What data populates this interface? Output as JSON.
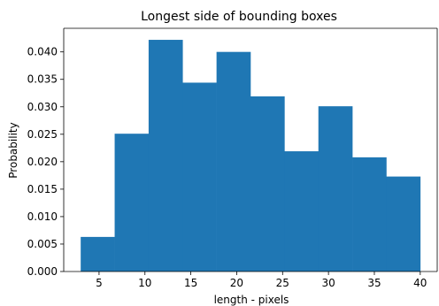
{
  "chart_data": {
    "type": "bar",
    "title": "Longest side of bounding boxes",
    "xlabel": "length - pixels",
    "ylabel": "Probability",
    "bins": [
      {
        "start": 3.0,
        "end": 6.7,
        "value": 0.0063
      },
      {
        "start": 6.7,
        "end": 10.4,
        "value": 0.0251
      },
      {
        "start": 10.4,
        "end": 14.1,
        "value": 0.0422
      },
      {
        "start": 14.1,
        "end": 17.8,
        "value": 0.0344
      },
      {
        "start": 17.8,
        "end": 21.5,
        "value": 0.04
      },
      {
        "start": 21.5,
        "end": 25.2,
        "value": 0.0319
      },
      {
        "start": 25.2,
        "end": 28.9,
        "value": 0.0219
      },
      {
        "start": 28.9,
        "end": 32.6,
        "value": 0.0301
      },
      {
        "start": 32.6,
        "end": 36.3,
        "value": 0.0208
      },
      {
        "start": 36.3,
        "end": 40.0,
        "value": 0.0173
      }
    ],
    "xlim": [
      1.15,
      41.85
    ],
    "ylim": [
      0,
      0.0443
    ],
    "xticks": [
      5,
      10,
      15,
      20,
      25,
      30,
      35,
      40
    ],
    "xtick_labels": [
      "5",
      "10",
      "15",
      "20",
      "25",
      "30",
      "35",
      "40"
    ],
    "yticks": [
      0,
      0.005,
      0.01,
      0.015,
      0.02,
      0.025,
      0.03,
      0.035,
      0.04
    ],
    "ytick_labels": [
      "0.000",
      "0.005",
      "0.010",
      "0.015",
      "0.020",
      "0.025",
      "0.030",
      "0.035",
      "0.040"
    ],
    "grid": false,
    "bar_color": "#1f77b4"
  }
}
